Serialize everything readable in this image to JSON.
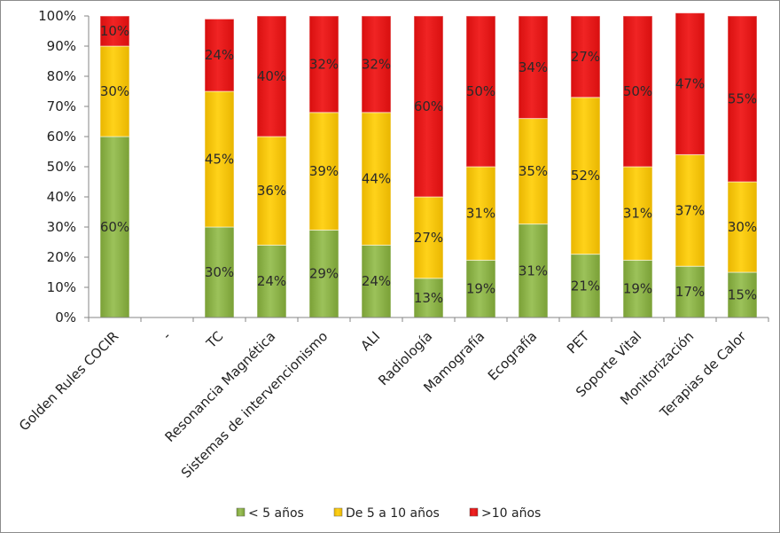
{
  "chart_data": {
    "type": "bar",
    "stacked": "percent",
    "categories": [
      "Golden Rules COCIR",
      "-",
      "TC",
      "Resonancia Magnética",
      "Sistemas de intervencionismo",
      "ALI",
      "Radiología",
      "Mamografía",
      "Ecografía",
      "PET",
      "Soporte Vital",
      "Monitorización",
      "Terapias de Calor"
    ],
    "series": [
      {
        "name": "< 5 años",
        "color": "#8fb54a",
        "values": [
          60,
          null,
          30,
          24,
          29,
          24,
          13,
          19,
          31,
          21,
          19,
          17,
          15
        ]
      },
      {
        "name": "De 5 a 10 años",
        "color": "#f5c400",
        "values": [
          30,
          null,
          45,
          36,
          39,
          44,
          27,
          31,
          35,
          52,
          31,
          37,
          30
        ]
      },
      {
        "name": ">10 años",
        "color": "#e61a1a",
        "values": [
          10,
          null,
          24,
          40,
          32,
          32,
          60,
          50,
          34,
          27,
          50,
          47,
          55
        ]
      }
    ],
    "y_ticks": [
      "0%",
      "10%",
      "20%",
      "30%",
      "40%",
      "50%",
      "60%",
      "70%",
      "80%",
      "90%",
      "100%"
    ],
    "ylim": [
      0,
      100
    ],
    "title": "",
    "xlabel": "",
    "ylabel": "",
    "grid": false,
    "legend_position": "bottom"
  }
}
